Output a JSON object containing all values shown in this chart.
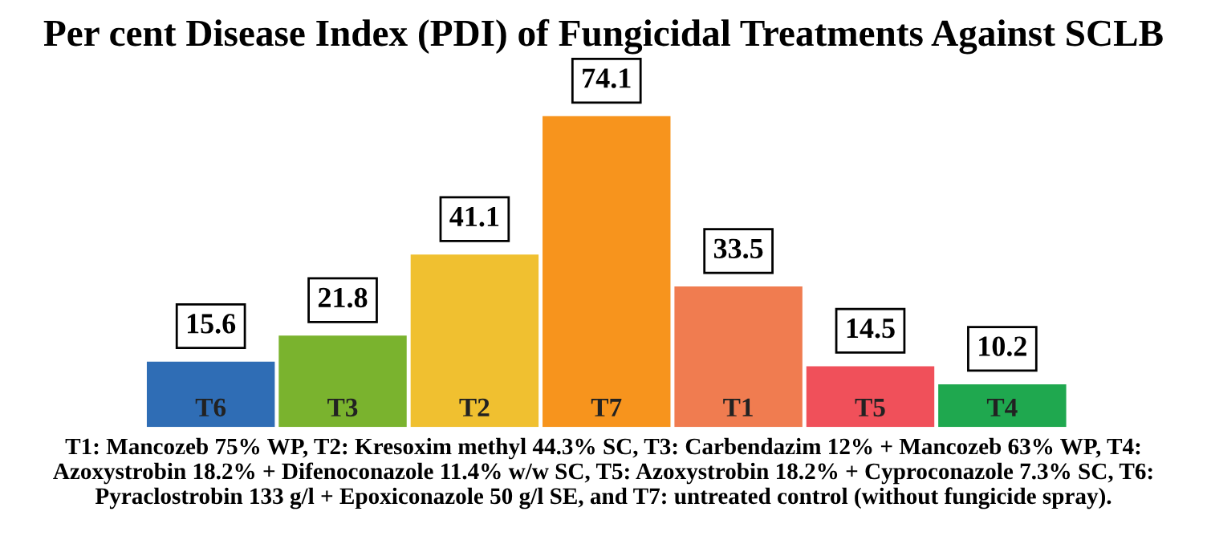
{
  "chart_data": {
    "type": "bar",
    "title": "Per cent Disease Index (PDI) of Fungicidal Treatments Against SCLB",
    "categories": [
      "T6",
      "T3",
      "T2",
      "T7",
      "T1",
      "T5",
      "T4"
    ],
    "values": [
      15.6,
      21.8,
      41.1,
      74.1,
      33.5,
      14.5,
      10.2
    ],
    "colors": [
      "#2f6db5",
      "#7ab32e",
      "#f0c030",
      "#f7941d",
      "#f07c50",
      "#f0505a",
      "#1fa84f"
    ],
    "data_labels": true,
    "annotations": [
      "T1: Mancozeb 75% WP, T2: Kresoxim methyl 44.3% SC, T3: Carbendazim 12% + Mancozeb 63% WP, T4: Azoxystrobin 18.2% + Difenoconazole 11.4% w/w SC, T5: Azoxystrobin 18.2% + Cyproconazole 7.3% SC, T6: Pyraclostrobin 133 g/l + Epoxiconazole 50 g/l SE, and T7: untreated control (without fungicide spray)."
    ]
  }
}
